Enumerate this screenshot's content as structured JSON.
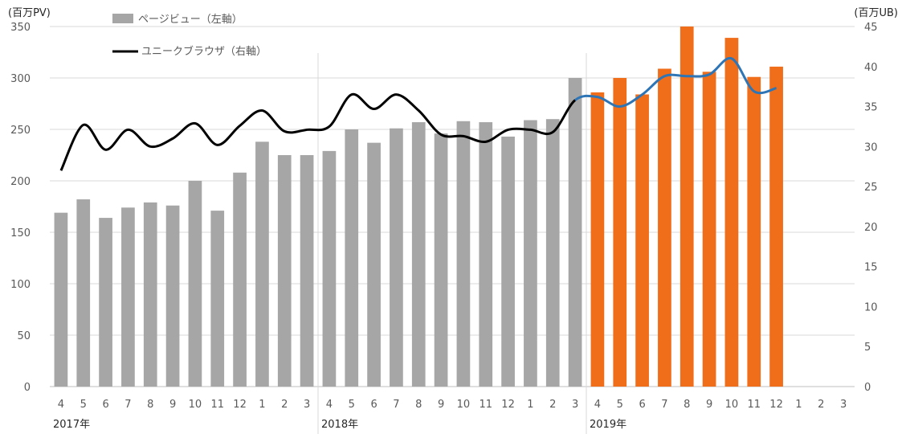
{
  "chart_data": {
    "type": "bar",
    "left_axis_unit": "(百万PV)",
    "right_axis_unit": "(百万UB)",
    "left_ylim": [
      0,
      350
    ],
    "left_ticks": [
      "0",
      "50",
      "100",
      "150",
      "200",
      "250",
      "300",
      "350"
    ],
    "right_ylim": [
      0,
      45
    ],
    "right_ticks": [
      "0",
      "5",
      "10",
      "15",
      "20",
      "25",
      "30",
      "35",
      "40",
      "45"
    ],
    "categories": [
      "4",
      "5",
      "6",
      "7",
      "8",
      "9",
      "10",
      "11",
      "12",
      "1",
      "2",
      "3",
      "4",
      "5",
      "6",
      "7",
      "8",
      "9",
      "10",
      "11",
      "12",
      "1",
      "2",
      "3",
      "4",
      "5",
      "6",
      "7",
      "8",
      "9",
      "10",
      "11",
      "12",
      "1",
      "2",
      "3"
    ],
    "years": [
      {
        "label": "2017年",
        "start_index": 0
      },
      {
        "label": "2018年",
        "start_index": 12
      },
      {
        "label": "2019年",
        "start_index": 24
      }
    ],
    "grid": true,
    "legend_placement": "top-left",
    "series": [
      {
        "name": "ページビュー（左軸）",
        "type": "bar",
        "axis": "left",
        "color": "#a6a6a6",
        "highlight_color": "#f06d1a",
        "highlight_from_index": 24,
        "values": [
          169,
          182,
          164,
          174,
          179,
          176,
          200,
          171,
          208,
          238,
          225,
          225,
          229,
          250,
          237,
          251,
          257,
          246,
          258,
          257,
          243,
          259,
          260,
          300,
          286,
          300,
          284,
          309,
          350,
          306,
          339,
          301,
          311,
          null,
          null,
          null
        ]
      },
      {
        "name": "ユニークブラウザ（右軸）",
        "type": "line",
        "axis": "right",
        "color": "#000000",
        "highlight_color": "#2e75b6",
        "highlight_from_index": 23,
        "values": [
          27.0,
          32.7,
          29.6,
          32.1,
          30.0,
          31.0,
          32.9,
          30.2,
          32.6,
          34.5,
          31.9,
          32.1,
          32.5,
          36.5,
          34.7,
          36.5,
          34.5,
          31.5,
          31.3,
          30.6,
          32.1,
          32.1,
          31.8,
          35.8,
          36.2,
          35.0,
          36.5,
          38.8,
          38.8,
          39.0,
          41.0,
          36.9,
          37.3,
          null,
          null,
          null
        ]
      }
    ]
  }
}
